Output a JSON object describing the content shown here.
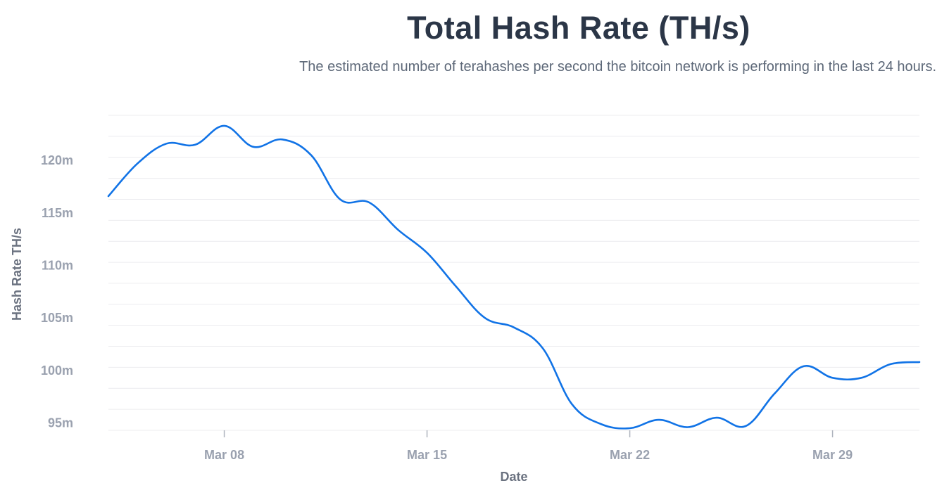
{
  "title": "Total Hash Rate (TH/s)",
  "subtitle": "The estimated number of terahashes per second the bitcoin network is performing in the last 24 hours.",
  "chart_data": {
    "type": "line",
    "title": "Total Hash Rate (TH/s)",
    "subtitle": "The estimated number of terahashes per second the bitcoin network is performing in the last 24 hours.",
    "xlabel": "Date",
    "ylabel": "Hash Rate TH/s",
    "x_ticks": [
      "Mar 08",
      "Mar 15",
      "Mar 22",
      "Mar 29"
    ],
    "y_ticks": [
      "95m",
      "100m",
      "105m",
      "110m",
      "115m",
      "120m"
    ],
    "y_tick_values": [
      95,
      100,
      105,
      110,
      115,
      120
    ],
    "ylim": [
      94.3,
      124.3
    ],
    "y_unit": "million TH/s",
    "grid": true,
    "line_color": "#1173e6",
    "series": [
      {
        "x": [
          "2020-03-04",
          "2020-03-05",
          "2020-03-06",
          "2020-03-07",
          "2020-03-08",
          "2020-03-09",
          "2020-03-10",
          "2020-03-11",
          "2020-03-12",
          "2020-03-13",
          "2020-03-14",
          "2020-03-15",
          "2020-03-16",
          "2020-03-17",
          "2020-03-18",
          "2020-03-19",
          "2020-03-20",
          "2020-03-21",
          "2020-03-22",
          "2020-03-23",
          "2020-03-24",
          "2020-03-25",
          "2020-03-26",
          "2020-03-27",
          "2020-03-28",
          "2020-03-29",
          "2020-03-30",
          "2020-03-31",
          "2020-04-01"
        ],
        "values": [
          116.6,
          119.7,
          121.6,
          121.5,
          123.3,
          121.3,
          122.0,
          120.5,
          116.3,
          116.0,
          113.4,
          111.2,
          108.0,
          105.0,
          104.1,
          102.1,
          96.8,
          94.9,
          94.5,
          95.3,
          94.6,
          95.5,
          94.7,
          97.8,
          100.4,
          99.3,
          99.3,
          100.6,
          100.8
        ]
      }
    ]
  }
}
